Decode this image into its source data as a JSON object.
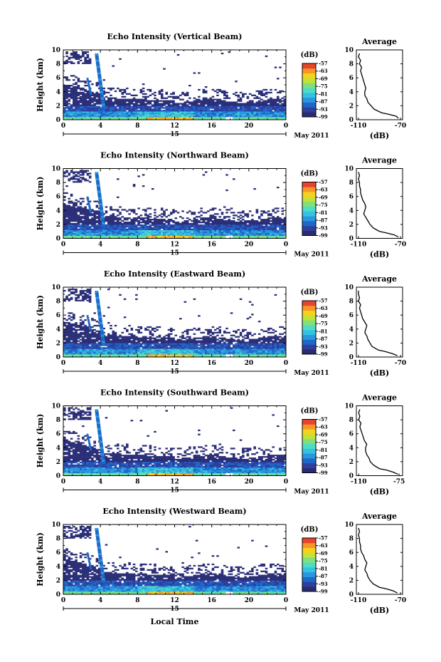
{
  "palette": {
    "background": "#ffffff",
    "axis": "#000000",
    "low_echo": "#2b2f78",
    "colormap": [
      "#2a2c6f",
      "#2f3f9e",
      "#1f67c9",
      "#2996de",
      "#34c2e2",
      "#4fdcc3",
      "#7fe07c",
      "#c2e23a",
      "#f6d21c",
      "#f79628",
      "#e8442b"
    ]
  },
  "chart_data": [
    {
      "type": "heatmap",
      "title": "Echo Intensity (Vertical Beam)",
      "ylabel": "Height (km)",
      "xlabel": "",
      "x_ticks": [
        "0",
        "4",
        "8",
        "12",
        "16",
        "20",
        "0"
      ],
      "y_ticks": [
        "0",
        "2",
        "4",
        "6",
        "8",
        "10"
      ],
      "xlim": [
        0,
        24
      ],
      "ylim": [
        0,
        10
      ],
      "date_marker": "15",
      "date_label": "May 2011",
      "colorbar": {
        "unit": "(dB)",
        "ticks": [
          "-57",
          "-63",
          "-69",
          "-75",
          "-81",
          "-87",
          "-93",
          "-99"
        ],
        "range": [
          -99,
          -57
        ]
      },
      "average": {
        "title": "Average",
        "xlabel": "(dB)",
        "x_ticks": [
          "-110",
          "-70"
        ],
        "xlim": [
          -112,
          -68
        ],
        "y_ticks": [
          "0",
          "2",
          "4",
          "6",
          "8",
          "10"
        ],
        "height_km": [
          0.2,
          0.5,
          0.8,
          1.0,
          1.5,
          2.0,
          2.5,
          3.0,
          3.5,
          4.0,
          4.5,
          5.0,
          5.5,
          6.0,
          6.5,
          7.0,
          7.5,
          8.0,
          8.5,
          9.0,
          9.5
        ],
        "echo_db": [
          -72,
          -74,
          -82,
          -88,
          -95,
          -98,
          -101,
          -102,
          -104,
          -104,
          -103,
          -104,
          -105,
          -106,
          -107,
          -108,
          -107,
          -109,
          -108,
          -110,
          -109
        ]
      }
    },
    {
      "type": "heatmap",
      "title": "Echo Intensity (Northward Beam)",
      "ylabel": "Height (km)",
      "xlabel": "",
      "x_ticks": [
        "0",
        "4",
        "8",
        "12",
        "16",
        "20",
        "0"
      ],
      "y_ticks": [
        "0",
        "2",
        "4",
        "6",
        "8",
        "10"
      ],
      "xlim": [
        0,
        24
      ],
      "ylim": [
        0,
        10
      ],
      "date_marker": "15",
      "date_label": "May 2011",
      "colorbar": {
        "unit": "(dB)",
        "ticks": [
          "-57",
          "-63",
          "-69",
          "-75",
          "-81",
          "-87",
          "-93",
          "-99"
        ],
        "range": [
          -99,
          -57
        ]
      },
      "average": {
        "title": "Average",
        "xlabel": "(dB)",
        "x_ticks": [
          "-110",
          "-70"
        ],
        "xlim": [
          -112,
          -68
        ],
        "y_ticks": [
          "0",
          "2",
          "4",
          "6",
          "8",
          "10"
        ],
        "height_km": [
          0.2,
          0.5,
          0.8,
          1.0,
          1.5,
          2.0,
          2.5,
          3.0,
          3.5,
          4.0,
          4.5,
          5.0,
          5.5,
          6.0,
          6.5,
          7.0,
          7.5,
          8.0,
          8.5,
          9.0,
          9.5
        ],
        "echo_db": [
          -72,
          -76,
          -84,
          -90,
          -96,
          -99,
          -101,
          -103,
          -105,
          -104,
          -103,
          -104,
          -106,
          -107,
          -108,
          -108,
          -109,
          -109,
          -110,
          -109,
          -110
        ]
      }
    },
    {
      "type": "heatmap",
      "title": "Echo Intensity (Eastward Beam)",
      "ylabel": "Height (km)",
      "xlabel": "",
      "x_ticks": [
        "0",
        "4",
        "8",
        "12",
        "16",
        "20",
        "0"
      ],
      "y_ticks": [
        "0",
        "2",
        "4",
        "6",
        "8",
        "10"
      ],
      "xlim": [
        0,
        24
      ],
      "ylim": [
        0,
        10
      ],
      "date_marker": "15",
      "date_label": "May 2011",
      "colorbar": {
        "unit": "(dB)",
        "ticks": [
          "-57",
          "-63",
          "-69",
          "-75",
          "-81",
          "-87",
          "-93",
          "-99"
        ],
        "range": [
          -99,
          -57
        ]
      },
      "average": {
        "title": "Average",
        "xlabel": "(dB)",
        "x_ticks": [
          "-110",
          "-70"
        ],
        "xlim": [
          -112,
          -68
        ],
        "y_ticks": [
          "0",
          "2",
          "4",
          "6",
          "8",
          "10"
        ],
        "height_km": [
          0.2,
          0.5,
          0.8,
          1.0,
          1.5,
          2.0,
          2.5,
          3.0,
          3.5,
          4.0,
          4.5,
          5.0,
          5.5,
          6.0,
          6.5,
          7.0,
          7.5,
          8.0,
          8.5,
          9.0,
          9.5
        ],
        "echo_db": [
          -73,
          -78,
          -85,
          -91,
          -97,
          -99,
          -101,
          -102,
          -104,
          -103,
          -102,
          -104,
          -106,
          -107,
          -108,
          -109,
          -108,
          -110,
          -109,
          -110,
          -110
        ]
      }
    },
    {
      "type": "heatmap",
      "title": "Echo Intensity (Southward Beam)",
      "ylabel": "Height (km)",
      "xlabel": "",
      "x_ticks": [
        "0",
        "4",
        "8",
        "12",
        "16",
        "20",
        "0"
      ],
      "y_ticks": [
        "0",
        "2",
        "4",
        "6",
        "8",
        "10"
      ],
      "xlim": [
        0,
        24
      ],
      "ylim": [
        0,
        10
      ],
      "date_marker": "15",
      "date_label": "May 2011",
      "colorbar": {
        "unit": "(dB)",
        "ticks": [
          "-57",
          "-63",
          "-69",
          "-75",
          "-81",
          "-87",
          "-93",
          "-99"
        ],
        "range": [
          -99,
          -57
        ]
      },
      "average": {
        "title": "Average",
        "xlabel": "(dB)",
        "x_ticks": [
          "-110",
          "-75"
        ],
        "xlim": [
          -112,
          -72
        ],
        "y_ticks": [
          "0",
          "2",
          "4",
          "6",
          "8",
          "10"
        ],
        "height_km": [
          0.2,
          0.5,
          0.8,
          1.0,
          1.5,
          2.0,
          2.5,
          3.0,
          3.5,
          4.0,
          4.5,
          5.0,
          5.5,
          6.0,
          6.5,
          7.0,
          7.5,
          8.0,
          8.5,
          9.0,
          9.5
        ],
        "echo_db": [
          -76,
          -80,
          -86,
          -92,
          -97,
          -100,
          -101,
          -103,
          -104,
          -104,
          -103,
          -105,
          -106,
          -107,
          -108,
          -109,
          -108,
          -110,
          -109,
          -110,
          -109
        ]
      }
    },
    {
      "type": "heatmap",
      "title": "Echo Intensity (Westward Beam)",
      "ylabel": "Height (km)",
      "xlabel": "Local Time",
      "x_ticks": [
        "0",
        "4",
        "8",
        "12",
        "16",
        "20",
        "0"
      ],
      "y_ticks": [
        "0",
        "2",
        "4",
        "6",
        "8",
        "10"
      ],
      "xlim": [
        0,
        24
      ],
      "ylim": [
        0,
        10
      ],
      "date_marker": "15",
      "date_label": "May 2011",
      "colorbar": {
        "unit": "(dB)",
        "ticks": [
          "-57",
          "-63",
          "-69",
          "-75",
          "-81",
          "-87",
          "-93",
          "-99"
        ],
        "range": [
          -99,
          -57
        ]
      },
      "average": {
        "title": "Average",
        "xlabel": "(dB)",
        "x_ticks": [
          "-110",
          "-70"
        ],
        "xlim": [
          -112,
          -68
        ],
        "y_ticks": [
          "0",
          "2",
          "4",
          "6",
          "8",
          "10"
        ],
        "height_km": [
          0.2,
          0.5,
          0.8,
          1.0,
          1.5,
          2.0,
          2.5,
          3.0,
          3.5,
          4.0,
          4.5,
          5.0,
          5.5,
          6.0,
          6.5,
          7.0,
          7.5,
          8.0,
          8.5,
          9.0,
          9.5
        ],
        "echo_db": [
          -73,
          -77,
          -84,
          -90,
          -96,
          -99,
          -101,
          -102,
          -104,
          -103,
          -102,
          -104,
          -105,
          -107,
          -108,
          -108,
          -109,
          -109,
          -110,
          -109,
          -110
        ]
      }
    }
  ]
}
